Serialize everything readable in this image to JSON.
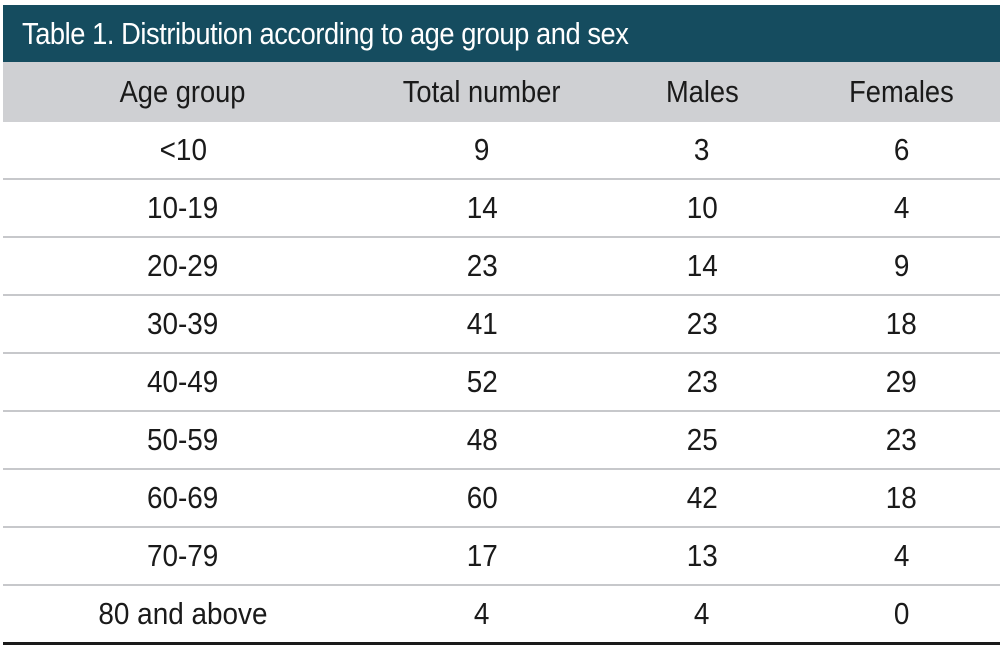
{
  "table": {
    "title": "Table 1. Distribution according to age group and sex",
    "columns": [
      "Age group",
      "Total number",
      "Males",
      "Females"
    ],
    "rows": [
      [
        "<10",
        "9",
        "3",
        "6"
      ],
      [
        "10-19",
        "14",
        "10",
        "4"
      ],
      [
        "20-29",
        "23",
        "14",
        "9"
      ],
      [
        "30-39",
        "41",
        "23",
        "18"
      ],
      [
        "40-49",
        "52",
        "23",
        "29"
      ],
      [
        "50-59",
        "48",
        "25",
        "23"
      ],
      [
        "60-69",
        "60",
        "42",
        "18"
      ],
      [
        "70-79",
        "17",
        "13",
        "4"
      ],
      [
        "80 and above",
        "4",
        "4",
        "0"
      ]
    ],
    "colors": {
      "title_background": "#154c5f",
      "title_text": "#ffffff",
      "header_background": "#cfd0d3",
      "row_divider": "#c7c8cb",
      "bottom_rule": "#1a1a1a"
    }
  }
}
